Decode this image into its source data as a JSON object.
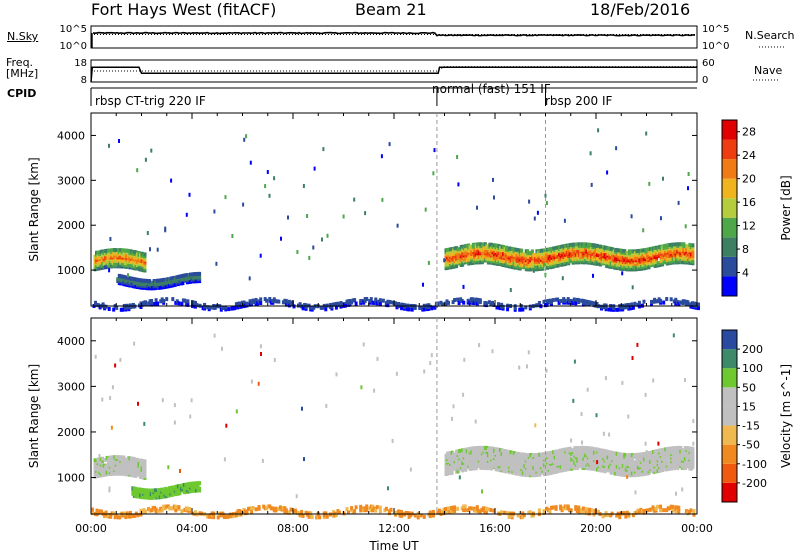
{
  "header": {
    "station": "Fort Hays West (fitACF)",
    "beam": "Beam 21",
    "date": "18/Feb/2016"
  },
  "left_labels": {
    "nsky": "N.Sky",
    "freq": "Freq.",
    "freq_unit": "[MHz]",
    "cpid": "CPID"
  },
  "right_labels": {
    "nsearch": "N.Search",
    "nave": "Nave"
  },
  "cpid_segments": [
    {
      "label": "rbsp CT-trig 220 IF",
      "start": 0.0
    },
    {
      "label": "normal (fast) 151 IF",
      "start": 13.7
    },
    {
      "label": "rbsp 200 IF",
      "start": 18.0
    }
  ],
  "colors": {
    "power": [
      "#0000ff",
      "#2b4b9c",
      "#3c7f63",
      "#4ea84a",
      "#b5cc3c",
      "#f0b41e",
      "#f07a14",
      "#ee3d10",
      "#e00000"
    ],
    "velocity": [
      "#e00000",
      "#f05a10",
      "#f08a20",
      "#f0b850",
      "#c0c0c0",
      "#c0c0c0",
      "#6ec830",
      "#3c8a6a",
      "#2a4aa0"
    ]
  },
  "chart_data": [
    {
      "type": "line",
      "title": "",
      "xlabel": "",
      "ylabel": "",
      "ylim_left": [
        1,
        100000
      ],
      "ylim_right": [
        1,
        100000
      ],
      "yticks_left": [
        "10^5",
        "10^0"
      ],
      "yticks_right": [
        "10^5",
        "10^0"
      ],
      "series": [
        {
          "name": "N.Sky",
          "x": [
            0,
            0.05,
            2,
            4,
            6,
            8,
            10,
            12,
            13.7,
            14,
            16,
            18,
            20,
            22,
            24
          ],
          "values": [
            1,
            2500,
            2400,
            2600,
            2500,
            2400,
            2500,
            2450,
            2400,
            650,
            800,
            750,
            800,
            700,
            650
          ]
        },
        {
          "name": "N.Search",
          "x": [
            0,
            24
          ],
          "values": [
            1200,
            1200
          ]
        }
      ]
    },
    {
      "type": "line",
      "title": "",
      "xlabel": "",
      "ylabel": "",
      "ylim_left": [
        8,
        18
      ],
      "ylim_right": [
        0,
        60
      ],
      "yticks_left": [
        "18",
        "8"
      ],
      "yticks_right": [
        "60",
        "0"
      ],
      "series": [
        {
          "name": "Freq.",
          "x": [
            0,
            0.05,
            1.9,
            2.0,
            13.75,
            13.8,
            24
          ],
          "values": [
            8,
            14.7,
            14.7,
            12.0,
            12.0,
            14.7,
            14.7
          ]
        },
        {
          "name": "Nave",
          "x": [
            0,
            2,
            13.7,
            14,
            24
          ],
          "values": [
            30,
            30,
            30,
            42,
            42
          ]
        }
      ]
    },
    {
      "type": "heatmap",
      "title": "",
      "xlabel": "",
      "ylabel": "Slant Range [km]",
      "xlim": [
        0,
        24
      ],
      "ylim": [
        200,
        4500
      ],
      "yticks": [
        1000,
        2000,
        3000,
        4000
      ],
      "colorbar": {
        "label": "Power [dB]",
        "ticks": [
          4,
          8,
          12,
          16,
          20,
          24,
          28
        ],
        "range": [
          0,
          30
        ]
      },
      "features": [
        {
          "name": "early echo band",
          "t_start": 0.1,
          "t_end": 2.1,
          "range_center": 1250,
          "range_width": 400,
          "peak_db": 24
        },
        {
          "name": "lower patch",
          "t_start": 1.0,
          "t_end": 4.3,
          "range_center": 820,
          "range_width": 200,
          "peak_db": 10
        },
        {
          "name": "main band",
          "t_start": 14.0,
          "t_end": 23.8,
          "range_center": 1350,
          "range_width": 420,
          "peak_db": 28
        },
        {
          "name": "ground clutter near range",
          "t_start": 0.0,
          "t_end": 24.0,
          "range_center": 300,
          "range_width": 120,
          "peak_db": 6
        }
      ]
    },
    {
      "type": "heatmap",
      "title": "",
      "xlabel": "Time UT",
      "ylabel": "Slant Range [km]",
      "xlim": [
        0,
        24
      ],
      "ylim": [
        200,
        4500
      ],
      "yticks": [
        1000,
        2000,
        3000,
        4000
      ],
      "xticks": [
        "00:00",
        "04:00",
        "08:00",
        "12:00",
        "16:00",
        "20:00",
        "00:00"
      ],
      "colorbar": {
        "label": "Velocity [m s^-1]",
        "ticks": [
          200,
          100,
          50,
          15,
          -15,
          -50,
          -100,
          -200
        ]
      },
      "features": [
        {
          "name": "early echo band",
          "t_start": 0.1,
          "t_end": 2.1,
          "range_center": 1250,
          "range_width": 400,
          "velocity": 0
        },
        {
          "name": "lower patch",
          "t_start": 1.6,
          "t_end": 4.3,
          "range_center": 780,
          "range_width": 200,
          "velocity": 40
        },
        {
          "name": "main band",
          "t_start": 14.0,
          "t_end": 23.8,
          "range_center": 1400,
          "range_width": 450,
          "velocity": 0
        },
        {
          "name": "ground clutter near range",
          "t_start": 0.0,
          "t_end": 24.0,
          "range_center": 300,
          "range_width": 100,
          "velocity": -50
        }
      ]
    }
  ]
}
